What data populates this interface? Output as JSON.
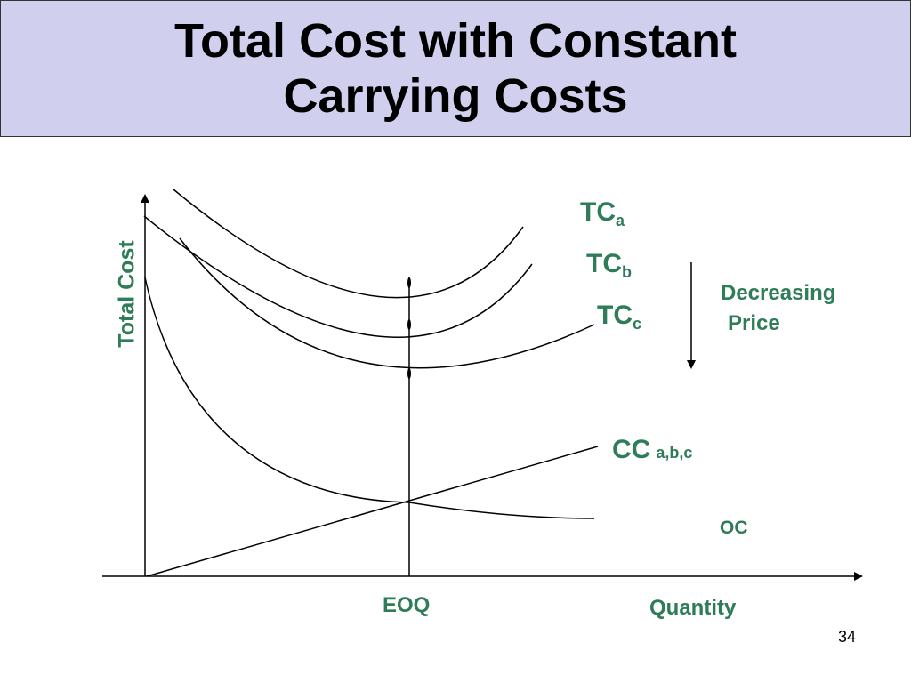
{
  "slide": {
    "title_line1": "Total Cost with Constant",
    "title_line2": "Carrying Costs",
    "page_number": "34"
  },
  "labels": {
    "y_axis": "Total Cost",
    "x_axis": "Quantity",
    "eoq": "EOQ",
    "tc_main": "TC",
    "tc_a_sub": "a",
    "tc_b_sub": "b",
    "tc_c_sub": "c",
    "cc_main": "CC",
    "cc_sub": "a,b,c",
    "oc": "OC",
    "decreasing": "Decreasing",
    "price": "Price"
  },
  "colors": {
    "title_background": "#d0d0ee",
    "label_green": "#2e7d58",
    "line": "#000000"
  }
}
